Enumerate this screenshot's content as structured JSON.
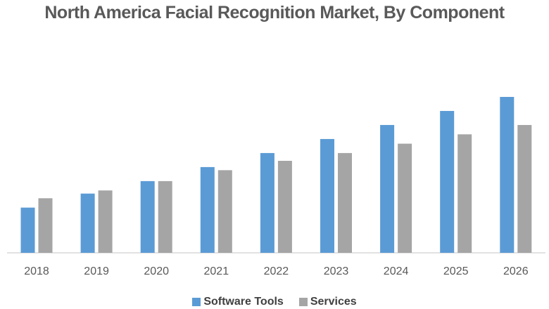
{
  "chart_data": {
    "type": "bar",
    "title": "North America Facial Recognition Market, By Component",
    "xlabel": "",
    "ylabel": "",
    "ylim": [
      0,
      100
    ],
    "grid": false,
    "legend_position": "bottom",
    "categories": [
      "2018",
      "2019",
      "2020",
      "2021",
      "2022",
      "2023",
      "2024",
      "2025",
      "2026"
    ],
    "series": [
      {
        "name": "Software Tools",
        "color": "#5B9BD5",
        "values": [
          29,
          38,
          46,
          55,
          64,
          73,
          82,
          91,
          100
        ]
      },
      {
        "name": "Services",
        "color": "#A5A5A5",
        "values": [
          35,
          40,
          46,
          53,
          59,
          64,
          70,
          76,
          82
        ]
      }
    ]
  }
}
